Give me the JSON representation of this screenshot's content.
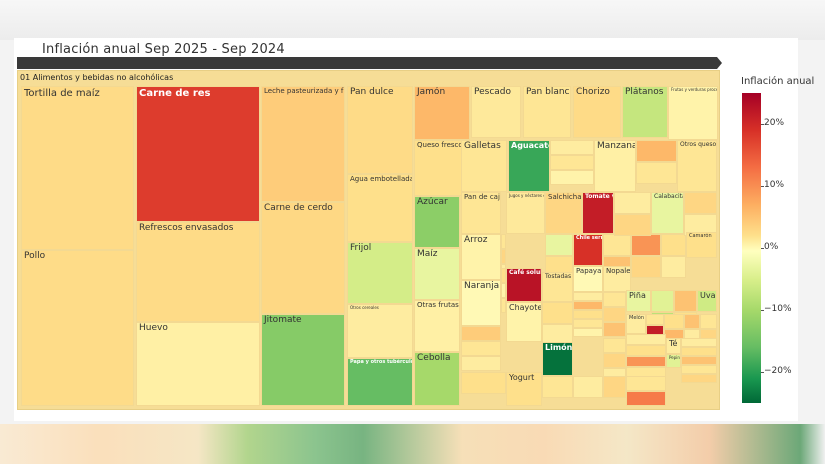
{
  "chart_data": {
    "type": "treemap",
    "title": "Inflación anual Sep 2025 - Sep 2024",
    "parent": "01 Alimentos y bebidas no alcohólicas",
    "colorbar": {
      "title": "Inflación anual",
      "range": [
        -25,
        25
      ],
      "ticks": [
        "20%",
        "10%",
        "0%",
        "−10%",
        "−20%"
      ]
    },
    "items": [
      {
        "name": "Tortilla de maíz",
        "value": 5.5
      },
      {
        "name": "Pollo",
        "value": 5.4
      },
      {
        "name": "Carne de res",
        "value": 19.0
      },
      {
        "name": "Refrescos envasados",
        "value": 5.5
      },
      {
        "name": "Huevo",
        "value": 2.5
      },
      {
        "name": "Leche pasteurizada y fresca",
        "value": 7.0
      },
      {
        "name": "Carne de cerdo",
        "value": 5.8
      },
      {
        "name": "Jitomate",
        "value": -12.5
      },
      {
        "name": "Pan dulce",
        "value": 5.5
      },
      {
        "name": "Agua embotellada",
        "value": 5.0
      },
      {
        "name": "Frijol",
        "value": -5.5
      },
      {
        "name": "Jamón",
        "value": 9.0
      },
      {
        "name": "Queso fresco",
        "value": 5.0
      },
      {
        "name": "Azúcar",
        "value": -12.0
      },
      {
        "name": "Maíz",
        "value": -3.0
      },
      {
        "name": "Otras frutas",
        "value": 2.5
      },
      {
        "name": "Cebolla",
        "value": -10.0
      },
      {
        "name": "Pescado",
        "value": 3.5
      },
      {
        "name": "Galletas",
        "value": 4.0
      },
      {
        "name": "Pan de caja",
        "value": 4.0
      },
      {
        "name": "Arroz",
        "value": 2.0
      },
      {
        "name": "Naranja",
        "value": 1.0
      },
      {
        "name": "Pan blanco",
        "value": 4.0
      },
      {
        "name": "Aguacate",
        "value": -18.0
      },
      {
        "name": "Chorizo",
        "value": 5.5
      },
      {
        "name": "Plátanos",
        "value": -7.0
      },
      {
        "name": "Manzana",
        "value": 2.5
      },
      {
        "name": "Otros quesos",
        "value": 4.0
      },
      {
        "name": "Salchichas",
        "value": 6.0
      },
      {
        "name": "Tomate verde",
        "value": 22.0
      },
      {
        "name": "Calabacita",
        "value": -3.0
      },
      {
        "name": "Chile serrano",
        "value": 20.0
      },
      {
        "name": "Café soluble",
        "value": 23.0
      },
      {
        "name": "Tostadas",
        "value": 4.0
      },
      {
        "name": "Papaya",
        "value": 1.0
      },
      {
        "name": "Nopales",
        "value": 3.0
      },
      {
        "name": "Chayote",
        "value": 2.0
      },
      {
        "name": "Limón",
        "value": -24.0
      },
      {
        "name": "Yogurt",
        "value": 5.0
      },
      {
        "name": "Piña",
        "value": -3.0
      },
      {
        "name": "Uva",
        "value": -6.0
      },
      {
        "name": "Melón",
        "value": 3.0
      },
      {
        "name": "Té",
        "value": 3.0
      },
      {
        "name": "Papa y otros tubérculos",
        "value": -15.0
      },
      {
        "name": "Frutas y verduras procesadas",
        "value": 2.0
      },
      {
        "name": "Otros cereales",
        "value": 3.0
      },
      {
        "name": "Jugos y néctares envasados",
        "value": 3.5
      },
      {
        "name": "Camarón",
        "value": 5.0
      },
      {
        "name": "Pepino",
        "value": -4.0
      }
    ]
  }
}
